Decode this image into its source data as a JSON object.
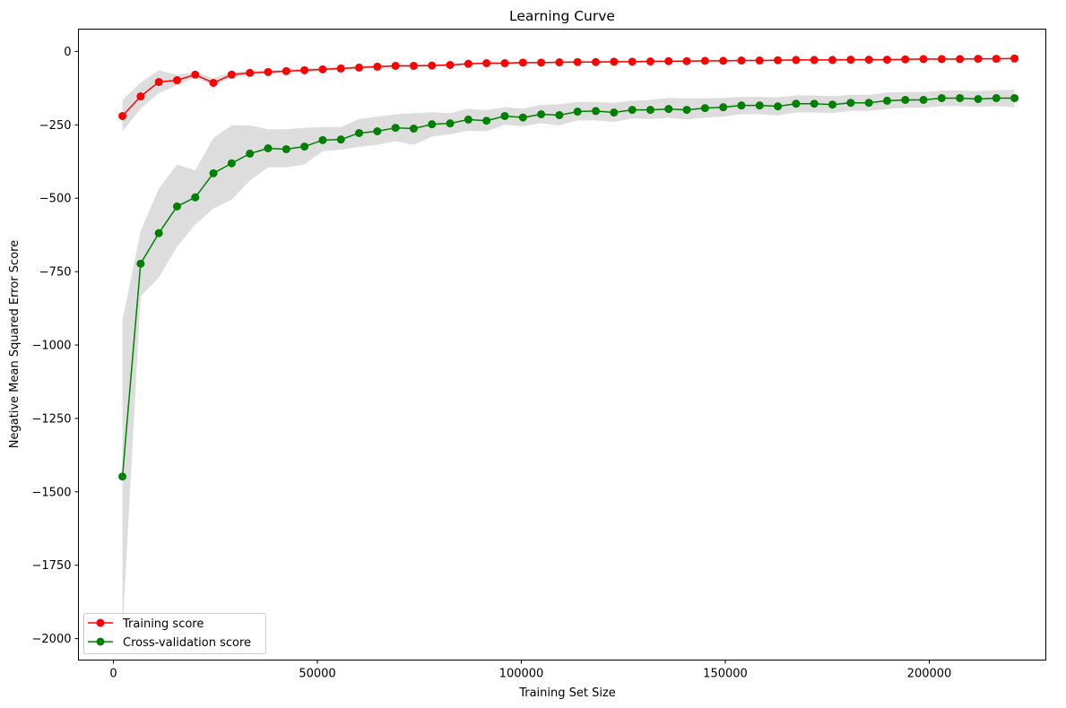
{
  "chart_data": {
    "type": "line",
    "title": "Learning Curve",
    "xlabel": "Training Set Size",
    "ylabel": "Negative Mean Squared Error Score",
    "xlim": [
      -8570,
      228570
    ],
    "ylim": [
      -2073,
      76
    ],
    "grid": false,
    "legend_position": "lower left",
    "x_ticks": [
      0,
      50000,
      100000,
      150000,
      200000
    ],
    "x_tick_labels": [
      "0",
      "50000",
      "100000",
      "150000",
      "200000"
    ],
    "y_ticks": [
      0,
      -250,
      -500,
      -750,
      -1000,
      -1250,
      -1500,
      -1750,
      -2000
    ],
    "y_tick_labels": [
      "0",
      "−250",
      "−500",
      "−750",
      "−1000",
      "−1250",
      "−1500",
      "−1750",
      "−2000"
    ],
    "x": [
      2209,
      6672,
      11135,
      15598,
      20061,
      24524,
      28987,
      33450,
      37913,
      42376,
      46839,
      51302,
      55765,
      60228,
      64691,
      69154,
      73617,
      78080,
      82543,
      87006,
      91469,
      95932,
      100395,
      104858,
      109321,
      113784,
      118247,
      122710,
      127173,
      131636,
      136099,
      140562,
      145025,
      149488,
      153951,
      158414,
      162877,
      167340,
      171803,
      176266,
      180729,
      185192,
      189655,
      194118,
      198581,
      203044,
      207507,
      211970,
      216433,
      220896
    ],
    "series": [
      {
        "name": "Training score",
        "color": "#ff0000",
        "values": [
          -220,
          -153,
          -104,
          -98,
          -79,
          -107,
          -79,
          -73,
          -70,
          -67,
          -64,
          -61,
          -58,
          -55,
          -52,
          -49,
          -49,
          -48,
          -46,
          -42,
          -40,
          -40,
          -38,
          -38,
          -37,
          -36,
          -36,
          -35,
          -35,
          -34,
          -33,
          -33,
          -32,
          -32,
          -31,
          -31,
          -30,
          -29,
          -29,
          -29,
          -28,
          -28,
          -28,
          -27,
          -26,
          -26,
          -26,
          -25,
          -25,
          -24
        ],
        "band_upper": [
          -165,
          -107,
          -64,
          -80,
          -70,
          -92,
          -70,
          -66,
          -64,
          -61,
          -58,
          -56,
          -53,
          -50,
          -48,
          -45,
          -45,
          -44,
          -42,
          -38,
          -37,
          -37,
          -35,
          -35,
          -34,
          -33,
          -33,
          -32,
          -32,
          -31,
          -30,
          -30,
          -29,
          -29,
          -28,
          -28,
          -27,
          -26,
          -26,
          -26,
          -25,
          -25,
          -25,
          -24,
          -23,
          -23,
          -23,
          -22,
          -22,
          -21
        ],
        "band_lower": [
          -272,
          -195,
          -142,
          -116,
          -88,
          -118,
          -88,
          -80,
          -76,
          -73,
          -70,
          -66,
          -63,
          -60,
          -56,
          -53,
          -53,
          -52,
          -50,
          -46,
          -43,
          -43,
          -41,
          -41,
          -40,
          -39,
          -39,
          -38,
          -38,
          -37,
          -36,
          -36,
          -35,
          -35,
          -34,
          -34,
          -33,
          -32,
          -32,
          -32,
          -31,
          -31,
          -31,
          -30,
          -29,
          -29,
          -29,
          -28,
          -28,
          -27
        ]
      },
      {
        "name": "Cross-validation score",
        "color": "#008000",
        "values": [
          -1448,
          -723,
          -619,
          -528,
          -497,
          -415,
          -381,
          -348,
          -330,
          -333,
          -324,
          -302,
          -300,
          -278,
          -272,
          -260,
          -263,
          -248,
          -245,
          -232,
          -236,
          -220,
          -225,
          -214,
          -217,
          -205,
          -203,
          -208,
          -199,
          -199,
          -196,
          -199,
          -193,
          -190,
          -184,
          -184,
          -187,
          -178,
          -178,
          -181,
          -175,
          -175,
          -168,
          -165,
          -165,
          -159,
          -159,
          -162,
          -159,
          -159
        ],
        "band_upper": [
          -915,
          -612,
          -467,
          -385,
          -405,
          -295,
          -252,
          -252,
          -265,
          -265,
          -260,
          -258,
          -258,
          -230,
          -222,
          -214,
          -210,
          -207,
          -210,
          -195,
          -200,
          -190,
          -195,
          -182,
          -180,
          -172,
          -172,
          -175,
          -168,
          -165,
          -158,
          -160,
          -160,
          -158,
          -155,
          -155,
          -156,
          -150,
          -150,
          -152,
          -148,
          -148,
          -140,
          -138,
          -138,
          -133,
          -133,
          -135,
          -132,
          -131
        ],
        "band_lower": [
          -1980,
          -834,
          -770,
          -665,
          -590,
          -535,
          -505,
          -440,
          -395,
          -395,
          -385,
          -340,
          -335,
          -325,
          -318,
          -305,
          -318,
          -290,
          -282,
          -270,
          -272,
          -250,
          -255,
          -244,
          -252,
          -235,
          -235,
          -240,
          -228,
          -230,
          -226,
          -232,
          -226,
          -222,
          -214,
          -214,
          -218,
          -208,
          -208,
          -210,
          -202,
          -202,
          -196,
          -192,
          -192,
          -186,
          -186,
          -189,
          -186,
          -190
        ]
      }
    ],
    "band_color": "#dddddd"
  }
}
